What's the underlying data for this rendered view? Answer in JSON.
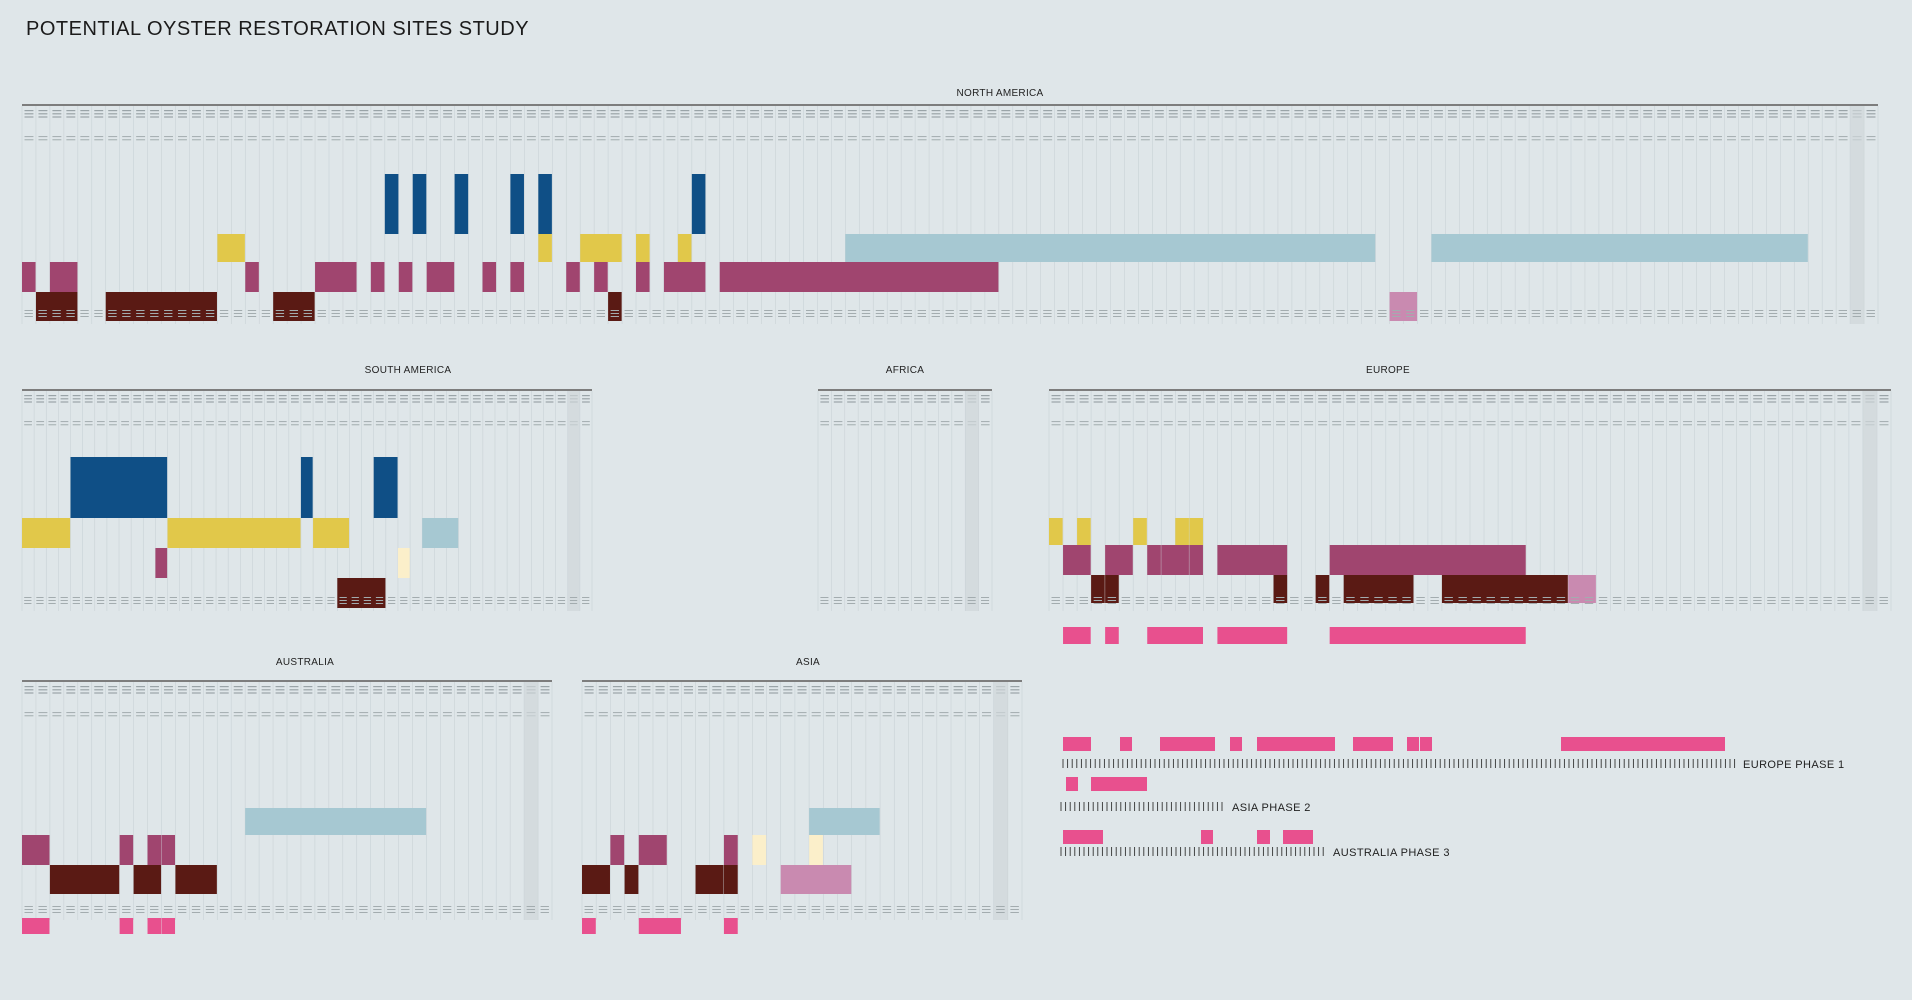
{
  "title": "POTENTIAL OYSTER RESTORATION SITES STUDY",
  "colors": {
    "background": "#dfe6e9",
    "blue": "#0f4f86",
    "yellow": "#e1c84a",
    "lightblue": "#a6c8d2",
    "purple": "#a0456f",
    "darkred": "#5a1a14",
    "pink": "#e8508e",
    "lightpink": "#c98ab0",
    "cream": "#fbefca",
    "gridline": "#c9d2d6",
    "topline": "#7d7d7d",
    "lastcol": "#cfd5d8"
  },
  "regions": [
    {
      "name": "NORTH AMERICA",
      "columns": 133,
      "rows": {
        "blue": [
          [
            26,
            1
          ],
          [
            28,
            1
          ],
          [
            31,
            1
          ],
          [
            35,
            1
          ],
          [
            37,
            1
          ],
          [
            48,
            1
          ]
        ],
        "yellow": [
          [
            14,
            2
          ],
          [
            37,
            1
          ],
          [
            40,
            3
          ],
          [
            44,
            1
          ],
          [
            47,
            1
          ]
        ],
        "purple": [
          [
            0,
            1
          ],
          [
            2,
            2
          ],
          [
            16,
            1
          ],
          [
            21,
            3
          ],
          [
            25,
            1
          ],
          [
            27,
            1
          ],
          [
            29,
            2
          ],
          [
            33,
            1
          ],
          [
            35,
            1
          ],
          [
            39,
            1
          ],
          [
            41,
            1
          ],
          [
            44,
            1
          ],
          [
            46,
            3
          ],
          [
            50,
            20
          ]
        ],
        "darkred": [
          [
            1,
            3
          ],
          [
            6,
            8
          ],
          [
            18,
            3
          ],
          [
            42,
            1
          ]
        ]
      }
    },
    {
      "name": "SOUTH AMERICA",
      "columns": 47
    },
    {
      "name": "AFRICA",
      "columns": 13
    },
    {
      "name": "EUROPE",
      "columns": 60
    },
    {
      "name": "AUSTRALIA",
      "columns": 38
    },
    {
      "name": "ASIA",
      "columns": 31
    }
  ],
  "legend": {
    "europe_label": "EUROPE   PHASE 1",
    "asia_label": "ASIA   PHASE 2",
    "australia_label": "AUSTRALIA  PHASE 3"
  }
}
